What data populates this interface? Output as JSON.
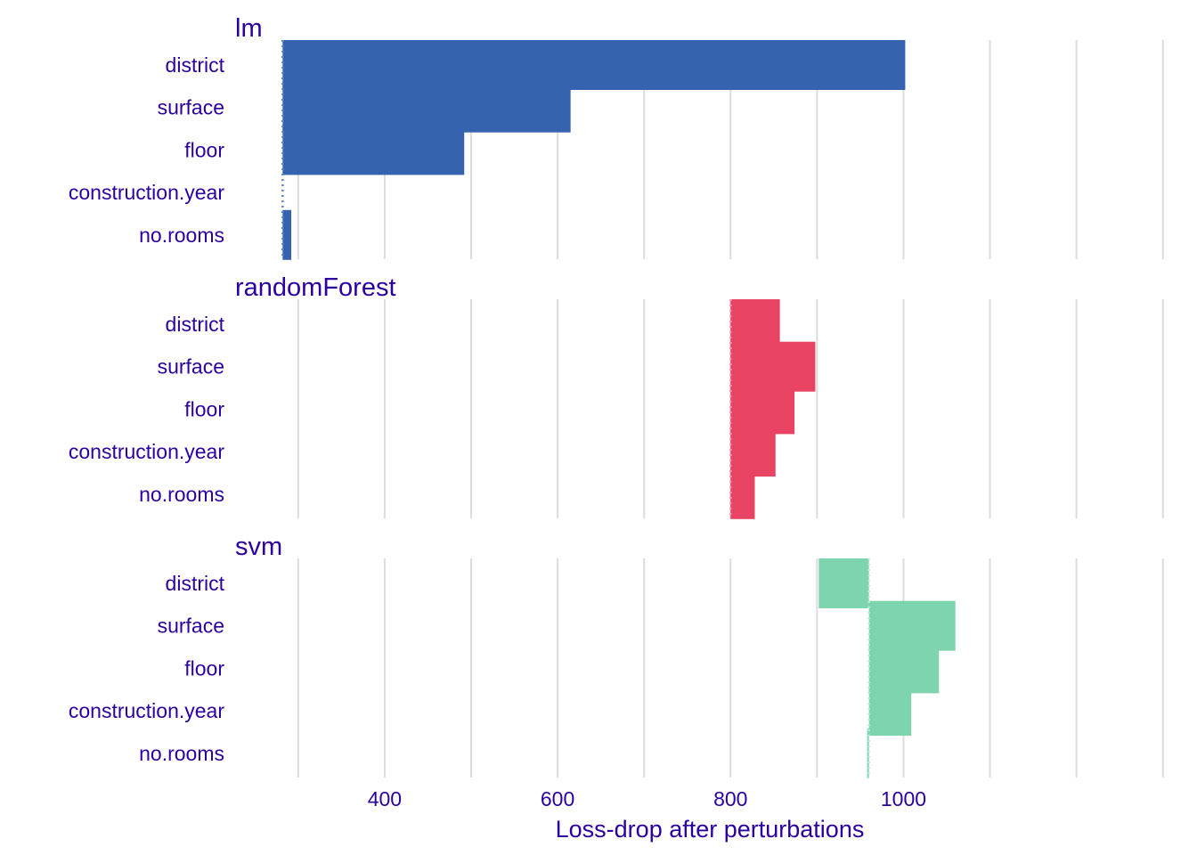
{
  "chart_data": {
    "type": "bar",
    "orientation": "horizontal",
    "xlabel": "Loss-drop after perturbations",
    "x_ticks": [
      400,
      600,
      800,
      1000
    ],
    "xlim": [
      225,
      1325
    ],
    "grid": true,
    "variables": [
      "district",
      "surface",
      "floor",
      "construction.year",
      "no.rooms"
    ],
    "panels": [
      {
        "name": "lm",
        "color": "#3563b0",
        "baseline": 282,
        "values": [
          1002,
          615,
          492,
          282,
          292
        ]
      },
      {
        "name": "randomForest",
        "color": "#e84362",
        "baseline": 800,
        "values": [
          857,
          898,
          874,
          852,
          828
        ]
      },
      {
        "name": "svm",
        "color": "#7dd4ae",
        "baseline": 960,
        "values": [
          902,
          1060,
          1041,
          1009,
          958
        ]
      }
    ]
  }
}
